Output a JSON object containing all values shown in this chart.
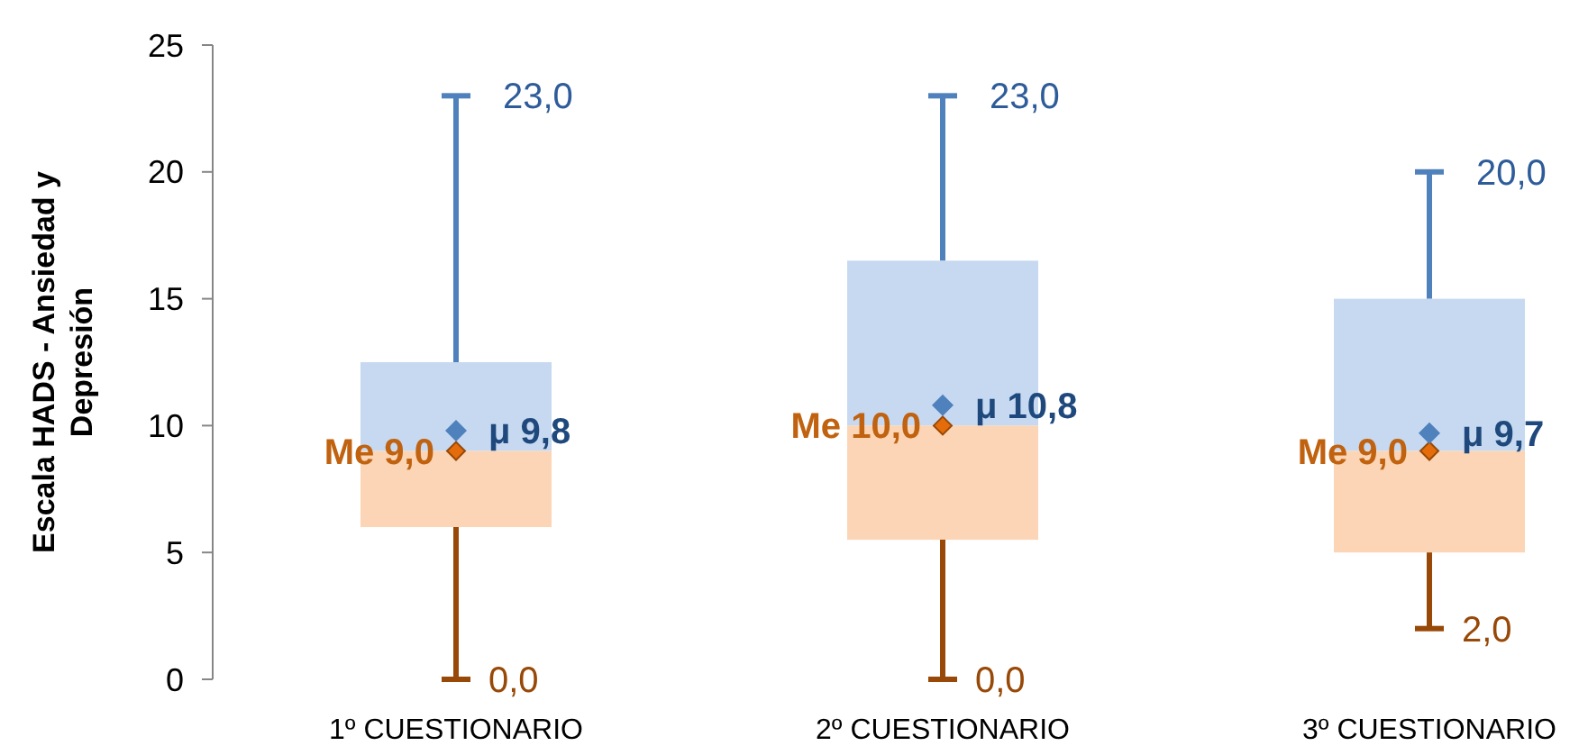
{
  "chart_data": {
    "type": "box",
    "ylabel": "Escala HADS - Ansiedad y Depresión",
    "categories": [
      "1º CUESTIONARIO",
      "2º CUESTIONARIO",
      "3º CUESTIONARIO"
    ],
    "boxes": [
      {
        "low": 0,
        "q1": 6,
        "median": 9,
        "q3": 12.5,
        "high": 23,
        "mean": 9.8
      },
      {
        "low": 0,
        "q1": 5.5,
        "median": 10,
        "q3": 16.5,
        "high": 23,
        "mean": 10.8
      },
      {
        "low": 2,
        "q1": 5,
        "median": 9,
        "q3": 15,
        "high": 20,
        "mean": 9.7
      }
    ],
    "ylim": [
      0,
      25
    ],
    "yticks": [
      0,
      5,
      10,
      15,
      20,
      25
    ],
    "annotations": [
      {
        "text": "23,0",
        "x": "1º CUESTIONARIO",
        "y": 23
      },
      {
        "text": "0,0",
        "x": "1º CUESTIONARIO",
        "y": 0
      },
      {
        "text": "Me 9,0",
        "x": "1º CUESTIONARIO",
        "y": 9
      },
      "μ 9,8",
      {
        "text": "23,0",
        "x": "2º CUESTIONARIO",
        "y": 23
      },
      {
        "text": "0,0",
        "x": "2º CUESTIONARIO",
        "y": 0
      },
      {
        "text": "Me 10,0",
        "x": "2º CUESTIONARIO",
        "y": 10
      },
      "μ 10,8",
      {
        "text": "20,0",
        "x": "3º CUESTIONARIO",
        "y": 20
      },
      {
        "text": "2,0",
        "x": "3º CUESTIONARIO",
        "y": 2
      },
      {
        "text": "Me 9,0",
        "x": "3º CUESTIONARIO",
        "y": 9
      },
      "μ 9,7"
    ]
  }
}
